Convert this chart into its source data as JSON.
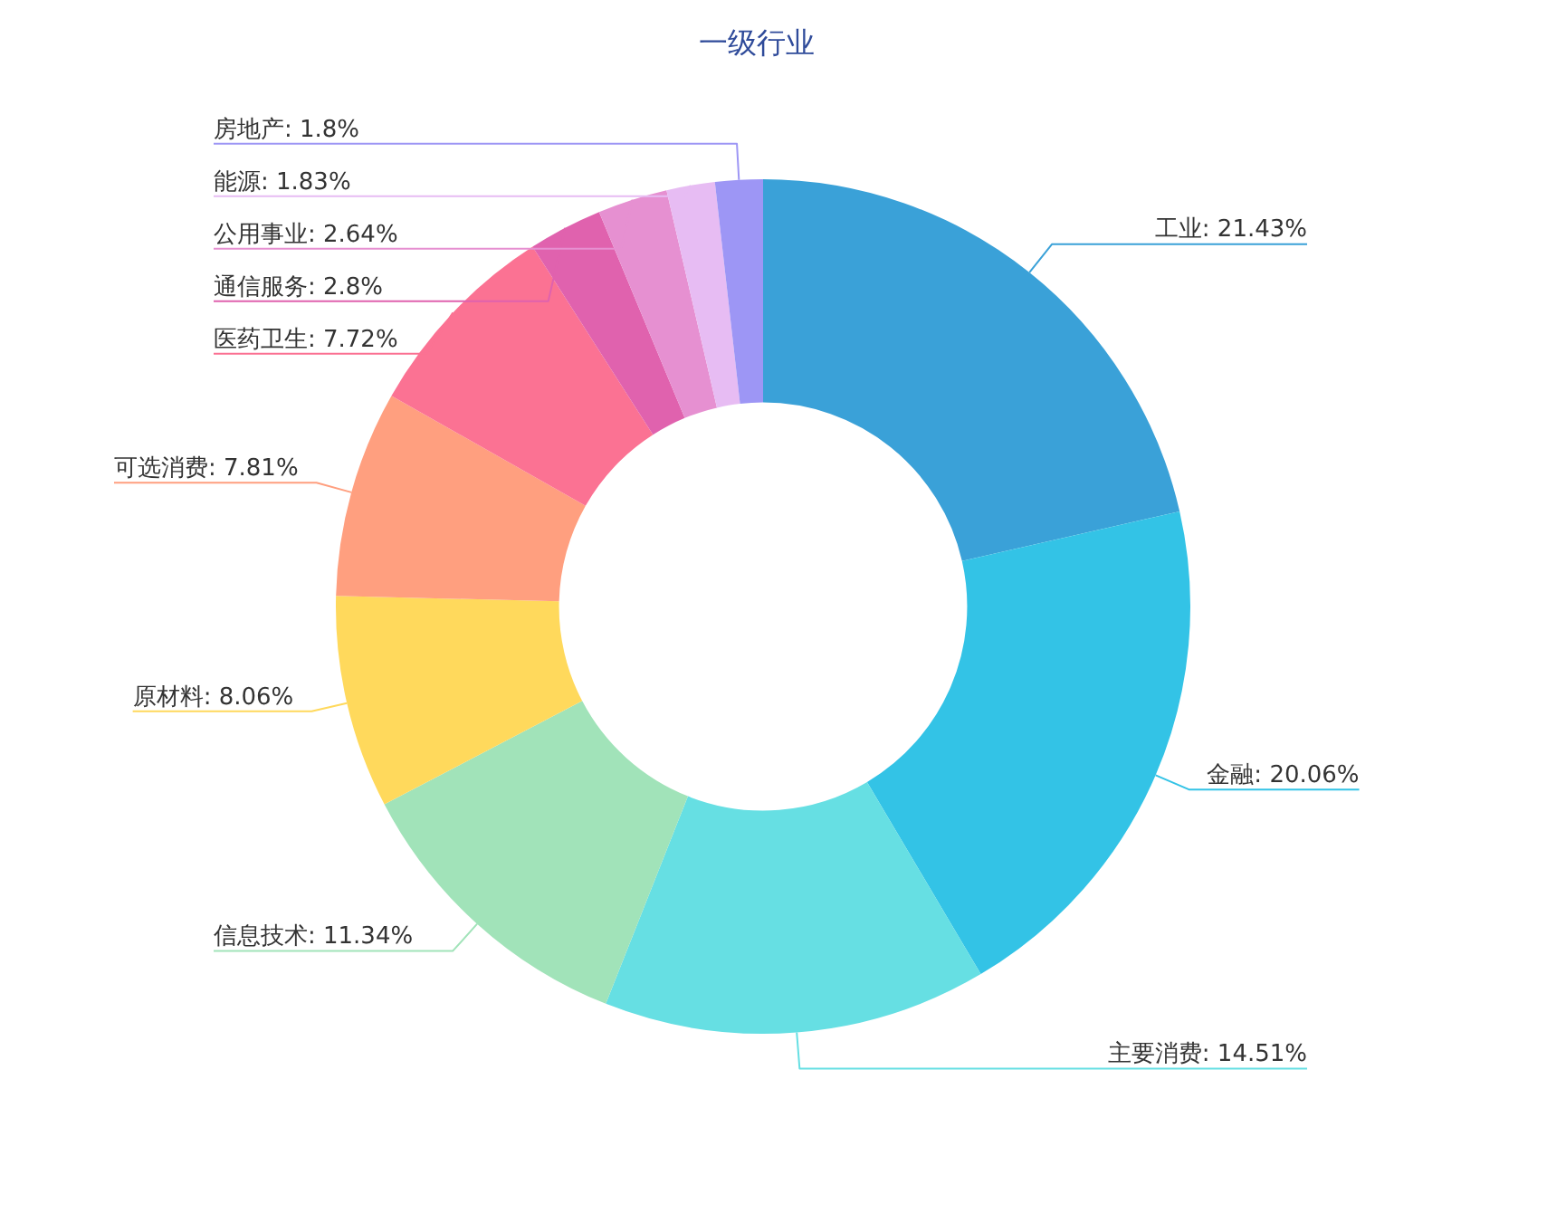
{
  "chart_data": {
    "type": "donut",
    "title": "一级行业",
    "categories": [
      "工业",
      "金融",
      "主要消费",
      "信息技术",
      "原材料",
      "可选消费",
      "医药卫生",
      "通信服务",
      "公用事业",
      "能源",
      "房地产"
    ],
    "values": [
      21.43,
      20.06,
      14.51,
      11.34,
      8.06,
      7.81,
      7.72,
      2.8,
      2.64,
      1.83,
      1.8
    ],
    "value_labels": [
      "21.43%",
      "20.06%",
      "14.51%",
      "11.34%",
      "8.06%",
      "7.81%",
      "7.72%",
      "2.8%",
      "2.64%",
      "1.83%",
      "1.8%"
    ],
    "colors": [
      "#3aa1d8",
      "#33c3e6",
      "#66dfe3",
      "#a1e3b9",
      "#ffd95c",
      "#ff9f7f",
      "#fb7293",
      "#e062ae",
      "#e690d1",
      "#e7bcf3",
      "#9d96f5"
    ],
    "legend": false
  }
}
